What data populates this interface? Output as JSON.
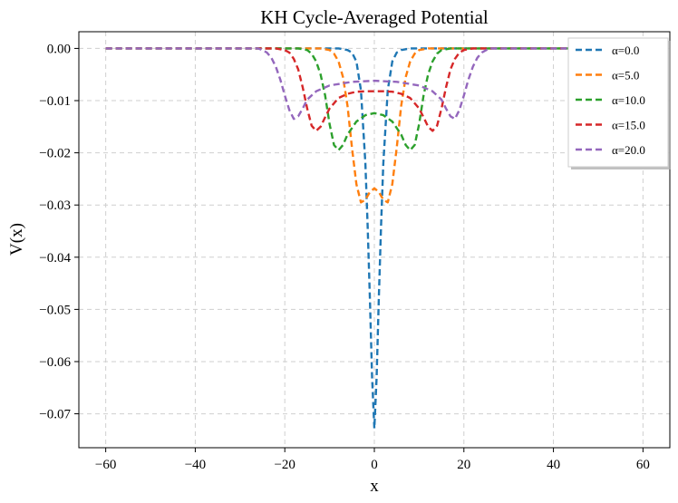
{
  "chart_data": {
    "type": "line",
    "title": "KH Cycle-Averaged Potential",
    "xlabel": "x",
    "ylabel": "V(x)",
    "xlim": [
      -66,
      66
    ],
    "ylim": [
      -0.0765,
      0.0032
    ],
    "grid": true,
    "legend_position": "top-right",
    "x_ticks": [
      -60,
      -40,
      -20,
      0,
      20,
      40,
      60
    ],
    "x_tick_labels": [
      "−60",
      "−40",
      "−20",
      "0",
      "20",
      "40",
      "60"
    ],
    "y_ticks": [
      0.0,
      -0.01,
      -0.02,
      -0.03,
      -0.04,
      -0.05,
      -0.06,
      -0.07
    ],
    "y_tick_labels": [
      "0.00",
      "−0.01",
      "−0.02",
      "−0.03",
      "−0.04",
      "−0.05",
      "−0.06",
      "−0.07"
    ],
    "series": [
      {
        "name": "α=0.0",
        "color": "#1f77b4",
        "x": [
          -60,
          -8,
          -6,
          -5,
          -4,
          -3,
          -2,
          -1.5,
          -1,
          -0.5,
          0,
          0.5,
          1,
          1.5,
          2,
          3,
          4,
          5,
          6,
          8,
          60
        ],
        "y": [
          0,
          0,
          -0.0003,
          -0.0008,
          -0.0025,
          -0.008,
          -0.022,
          -0.034,
          -0.048,
          -0.063,
          -0.0728,
          -0.063,
          -0.048,
          -0.034,
          -0.022,
          -0.008,
          -0.0025,
          -0.0008,
          -0.0003,
          0,
          0
        ]
      },
      {
        "name": "α=5.0",
        "color": "#ff7f0e",
        "x": [
          -60,
          -12,
          -10,
          -9,
          -8,
          -7,
          -6,
          -5,
          -4,
          -3,
          -2,
          -1,
          0,
          1,
          2,
          3,
          4,
          5,
          6,
          7,
          8,
          9,
          10,
          12,
          60
        ],
        "y": [
          0,
          0,
          -0.0003,
          -0.001,
          -0.0025,
          -0.0055,
          -0.011,
          -0.019,
          -0.026,
          -0.0295,
          -0.029,
          -0.0275,
          -0.0268,
          -0.0275,
          -0.029,
          -0.0295,
          -0.026,
          -0.019,
          -0.011,
          -0.0055,
          -0.0025,
          -0.001,
          -0.0003,
          0,
          0
        ]
      },
      {
        "name": "α=10.0",
        "color": "#2ca02c",
        "x": [
          -60,
          -17,
          -15,
          -14,
          -13,
          -12,
          -11,
          -10,
          -9,
          -8,
          -7,
          -6,
          -4,
          -2,
          0,
          2,
          4,
          6,
          7,
          8,
          9,
          10,
          11,
          12,
          13,
          14,
          15,
          17,
          60
        ],
        "y": [
          0,
          0,
          -0.0003,
          -0.001,
          -0.0025,
          -0.005,
          -0.009,
          -0.0145,
          -0.0185,
          -0.0195,
          -0.0185,
          -0.0165,
          -0.014,
          -0.0128,
          -0.0124,
          -0.0128,
          -0.014,
          -0.0165,
          -0.0185,
          -0.0195,
          -0.0185,
          -0.0145,
          -0.009,
          -0.005,
          -0.0025,
          -0.001,
          -0.0003,
          0,
          0
        ]
      },
      {
        "name": "α=15.0",
        "color": "#d62728",
        "x": [
          -60,
          -22,
          -20,
          -19,
          -18,
          -17,
          -16,
          -15,
          -14,
          -13,
          -12,
          -11,
          -10,
          -8,
          -6,
          -4,
          -2,
          0,
          2,
          4,
          6,
          8,
          10,
          11,
          12,
          13,
          14,
          15,
          16,
          17,
          18,
          19,
          20,
          22,
          60
        ],
        "y": [
          0,
          0,
          -0.0003,
          -0.0008,
          -0.002,
          -0.004,
          -0.0075,
          -0.0115,
          -0.0148,
          -0.0158,
          -0.015,
          -0.0132,
          -0.0115,
          -0.0095,
          -0.0087,
          -0.0083,
          -0.0082,
          -0.0082,
          -0.0082,
          -0.0083,
          -0.0087,
          -0.0095,
          -0.0115,
          -0.0132,
          -0.015,
          -0.0158,
          -0.0148,
          -0.0115,
          -0.0075,
          -0.004,
          -0.002,
          -0.0008,
          -0.0003,
          0,
          0
        ]
      },
      {
        "name": "α=20.0",
        "color": "#9467bd",
        "x": [
          -60,
          -26,
          -25,
          -24,
          -23,
          -22,
          -21,
          -20,
          -19,
          -18,
          -17,
          -16,
          -15,
          -13,
          -10,
          -5,
          0,
          5,
          10,
          13,
          15,
          16,
          17,
          18,
          19,
          20,
          21,
          22,
          23,
          24,
          25,
          26,
          60
        ],
        "y": [
          0,
          0,
          -0.0003,
          -0.0008,
          -0.0018,
          -0.0035,
          -0.006,
          -0.009,
          -0.0118,
          -0.0135,
          -0.013,
          -0.0115,
          -0.0098,
          -0.0082,
          -0.0071,
          -0.0064,
          -0.0062,
          -0.0064,
          -0.0071,
          -0.0082,
          -0.0098,
          -0.0115,
          -0.013,
          -0.0135,
          -0.0118,
          -0.009,
          -0.006,
          -0.0035,
          -0.0018,
          -0.0008,
          -0.0003,
          0,
          0
        ]
      }
    ]
  }
}
